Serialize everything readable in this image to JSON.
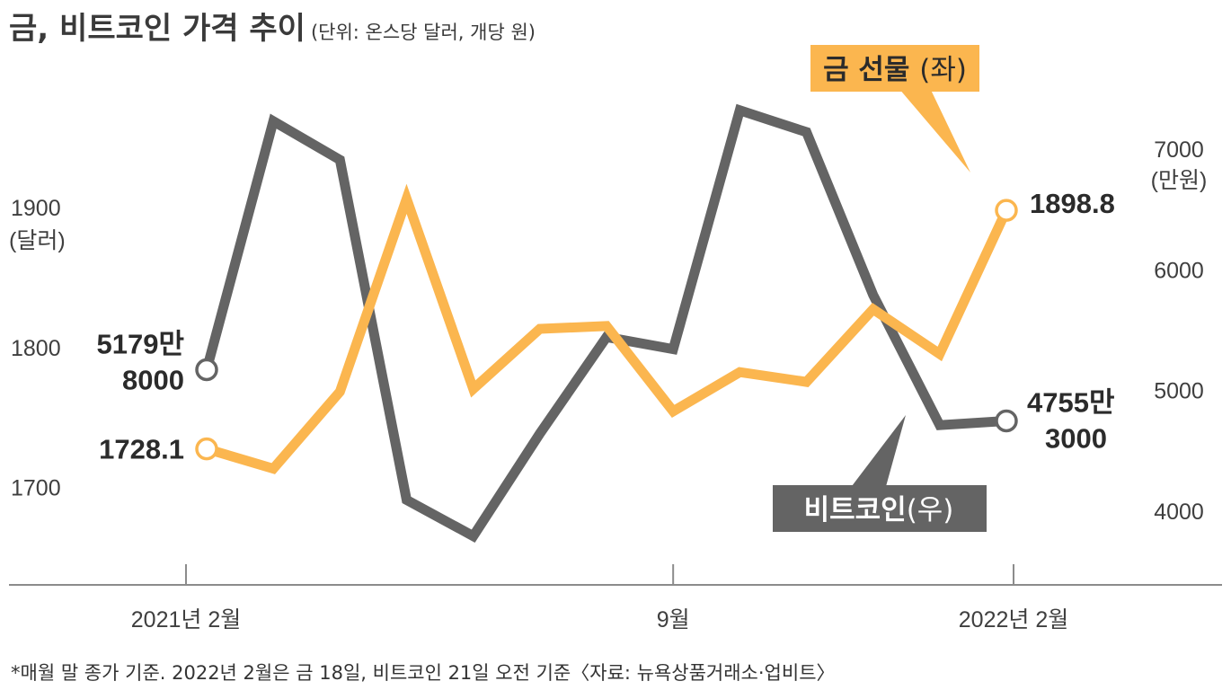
{
  "title": "금, 비트코인 가격 추이",
  "unit_note": "(단위: 온스당 달러, 개당 원)",
  "footnote": "*매월 말 종가 기준. 2022년 2월은 금 18일, 비트코인 21일 오전 기준〈자료: 뉴욕상품거래소·업비트〉",
  "colors": {
    "gold": "#fbb64f",
    "bitcoin": "#646464",
    "axis": "#8c8c8c"
  },
  "chart_data": {
    "type": "line",
    "x": [
      "2021-02",
      "2021-03",
      "2021-04",
      "2021-05",
      "2021-06",
      "2021-07",
      "2021-08",
      "2021-09",
      "2021-10",
      "2021-11",
      "2021-12",
      "2022-01",
      "2022-02"
    ],
    "x_tick_labels": [
      {
        "x": "2021-02",
        "label": "2021년 2월"
      },
      {
        "x": "2021-09",
        "label": "9월"
      },
      {
        "x": "2022-02",
        "label": "2022년 2월"
      }
    ],
    "left_axis": {
      "ticks": [
        "1700",
        "1800",
        "1900"
      ],
      "unit": "(달러)",
      "ylim": [
        1670,
        1985
      ]
    },
    "right_axis": {
      "ticks": [
        "4000",
        "5000",
        "6000",
        "7000"
      ],
      "unit": "(만원)",
      "ylim": [
        3850,
        7500
      ]
    },
    "series": [
      {
        "name": "금 선물",
        "axis_tag": "(좌)",
        "axis": "left",
        "values": [
          1728.1,
          1714,
          1769,
          1907,
          1771,
          1814,
          1816,
          1755,
          1783,
          1776,
          1828,
          1796,
          1898.8
        ],
        "start_label": "1728.1",
        "end_label": "1898.8"
      },
      {
        "name": "비트코인",
        "axis_tag": "(우)",
        "axis": "right",
        "values": [
          5179.8,
          7240,
          6920,
          4100,
          3800,
          4650,
          5450,
          5350,
          7330,
          7150,
          5800,
          4720,
          4755.3
        ],
        "start_label_lines": [
          "5179만",
          "8000"
        ],
        "end_label_lines": [
          "4755만",
          "3000"
        ]
      }
    ]
  }
}
